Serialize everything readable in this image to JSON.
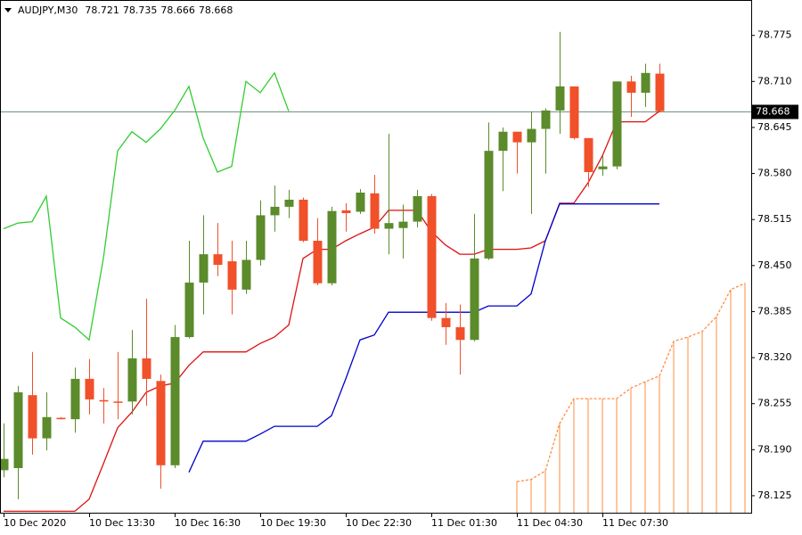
{
  "chart_data": {
    "type": "candlestick",
    "title": "AUDJPY,M30",
    "categories": [
      "10 Dec 2020",
      null,
      null,
      null,
      null,
      null,
      "10 Dec 13:30",
      null,
      null,
      null,
      null,
      null,
      "10 Dec 16:30",
      null,
      null,
      null,
      null,
      null,
      "10 Dec 19:30",
      null,
      null,
      null,
      null,
      null,
      "10 Dec 22:30",
      null,
      null,
      null,
      null,
      null,
      "11 Dec 01:30",
      null,
      null,
      null,
      null,
      null,
      "11 Dec 04:30",
      null,
      null,
      null,
      null,
      null,
      "11 Dec 07:30",
      null,
      null,
      null,
      null,
      null,
      null,
      null,
      null,
      null,
      null
    ],
    "open": [
      78.161,
      78.164,
      78.267,
      78.206,
      78.235,
      78.233,
      78.29,
      78.26,
      78.258,
      78.258,
      78.319,
      78.287,
      78.168,
      78.349,
      78.426,
      78.466,
      78.456,
      78.416,
      78.458,
      78.521,
      78.533,
      78.543,
      78.485,
      78.425,
      78.528,
      78.526,
      78.552,
      78.502,
      78.503,
      78.512,
      78.548,
      78.376,
      78.363,
      78.345,
      78.46,
      78.612,
      78.639,
      78.624,
      78.643,
      78.669,
      78.703,
      78.63,
      78.586,
      78.59,
      78.71,
      78.694,
      78.721,
      null,
      null,
      null,
      null,
      null,
      null
    ],
    "high": [
      78.227,
      78.28,
      78.328,
      78.271,
      78.236,
      78.306,
      78.318,
      78.277,
      78.328,
      78.359,
      78.403,
      78.296,
      78.366,
      78.485,
      78.521,
      78.51,
      78.485,
      78.485,
      78.542,
      78.563,
      78.557,
      78.546,
      78.517,
      78.533,
      78.538,
      78.558,
      78.578,
      78.636,
      78.536,
      78.557,
      78.551,
      78.397,
      78.395,
      78.523,
      78.652,
      78.645,
      78.639,
      78.668,
      78.672,
      78.78,
      78.703,
      78.63,
      78.605,
      78.71,
      78.718,
      78.735,
      78.735,
      null,
      null,
      null,
      null,
      null,
      null
    ],
    "low": [
      78.151,
      78.12,
      78.183,
      78.189,
      78.233,
      78.214,
      78.24,
      78.227,
      78.233,
      78.24,
      78.252,
      78.135,
      78.164,
      78.347,
      78.381,
      78.435,
      78.381,
      78.41,
      78.45,
      78.498,
      78.517,
      78.483,
      78.422,
      78.422,
      78.498,
      78.523,
      78.495,
      78.466,
      78.46,
      78.504,
      78.372,
      78.338,
      78.296,
      78.343,
      78.458,
      78.555,
      78.58,
      78.523,
      78.58,
      78.636,
      78.628,
      78.561,
      78.577,
      78.586,
      78.66,
      78.674,
      78.666,
      null,
      null,
      null,
      null,
      null,
      null
    ],
    "close": [
      78.177,
      78.271,
      78.206,
      78.236,
      78.233,
      78.29,
      78.261,
      78.258,
      78.257,
      78.319,
      78.29,
      78.168,
      78.349,
      78.426,
      78.466,
      78.451,
      78.416,
      78.458,
      78.521,
      78.533,
      78.543,
      78.485,
      78.425,
      78.527,
      78.524,
      78.553,
      78.502,
      78.51,
      78.512,
      78.548,
      78.376,
      78.363,
      78.345,
      78.46,
      78.612,
      78.639,
      78.624,
      78.643,
      78.669,
      78.703,
      78.63,
      78.582,
      78.59,
      78.71,
      78.694,
      78.722,
      78.668,
      null,
      null,
      null,
      null,
      null,
      null
    ],
    "up_color": "#5b8b2b",
    "down_color": "#f0502a",
    "price_line_color": "#6f9480",
    "series": [
      {
        "color": "#33cc33",
        "values": [
          78.502,
          78.51,
          78.512,
          78.548,
          78.376,
          78.363,
          78.345,
          78.46,
          78.612,
          78.639,
          78.624,
          78.643,
          78.669,
          78.703,
          78.63,
          78.582,
          78.59,
          78.71,
          78.694,
          78.722,
          78.668,
          null,
          null,
          null,
          null,
          null,
          null,
          null,
          null,
          null,
          null,
          null,
          null,
          null,
          null,
          null,
          null,
          null,
          null,
          null,
          null,
          null,
          null,
          null,
          null,
          null,
          null,
          null,
          null,
          null,
          null,
          null,
          null
        ]
      },
      {
        "color": "#dd1111",
        "values": [
          78.103,
          78.103,
          78.103,
          78.103,
          78.103,
          78.103,
          78.12,
          78.17,
          78.221,
          78.243,
          78.271,
          78.28,
          78.284,
          78.309,
          78.328,
          78.328,
          78.328,
          78.328,
          78.34,
          78.349,
          78.366,
          78.46,
          78.473,
          78.473,
          78.485,
          78.495,
          78.504,
          78.528,
          78.528,
          78.528,
          78.498,
          78.479,
          78.466,
          78.466,
          78.473,
          78.473,
          78.473,
          78.475,
          78.485,
          78.538,
          78.538,
          78.567,
          78.605,
          78.653,
          78.653,
          78.653,
          78.668,
          null,
          null,
          null,
          null,
          null,
          null
        ]
      },
      {
        "color": "#0000cc",
        "values": [
          null,
          null,
          null,
          null,
          null,
          null,
          null,
          null,
          null,
          null,
          null,
          null,
          null,
          78.158,
          78.202,
          78.202,
          78.202,
          78.202,
          78.212,
          78.223,
          78.223,
          78.223,
          78.223,
          78.238,
          78.29,
          78.345,
          78.352,
          78.384,
          78.384,
          78.384,
          78.384,
          78.384,
          78.384,
          78.384,
          78.393,
          78.393,
          78.393,
          78.41,
          78.485,
          78.537,
          78.537,
          78.537,
          78.537,
          78.537,
          78.537,
          78.537,
          78.537,
          null,
          null,
          null,
          null,
          null,
          null
        ]
      },
      {
        "color": "#ff8c42",
        "dashed": true,
        "hatch": true,
        "values": [
          null,
          null,
          null,
          null,
          null,
          null,
          null,
          null,
          null,
          null,
          null,
          null,
          null,
          null,
          null,
          null,
          null,
          null,
          null,
          null,
          null,
          null,
          null,
          null,
          null,
          null,
          null,
          null,
          null,
          null,
          null,
          null,
          null,
          null,
          null,
          null,
          78.145,
          78.148,
          78.16,
          78.227,
          78.262,
          78.262,
          78.262,
          78.262,
          78.277,
          78.286,
          78.294,
          78.343,
          78.349,
          78.357,
          78.378,
          78.416,
          78.425
        ]
      }
    ],
    "ylim": [
      78.101,
      78.825
    ],
    "yticks": [
      78.775,
      {
        "value": 78.71,
        "label": "78.710"
      },
      78.645,
      {
        "value": 78.58,
        "label": "78.580"
      },
      78.515,
      {
        "value": 78.45,
        "label": "78.450"
      },
      78.385,
      {
        "value": 78.32,
        "label": "78.320"
      },
      78.255,
      {
        "value": 78.19,
        "label": "78.190"
      },
      78.125
    ],
    "grid": false
  }
}
